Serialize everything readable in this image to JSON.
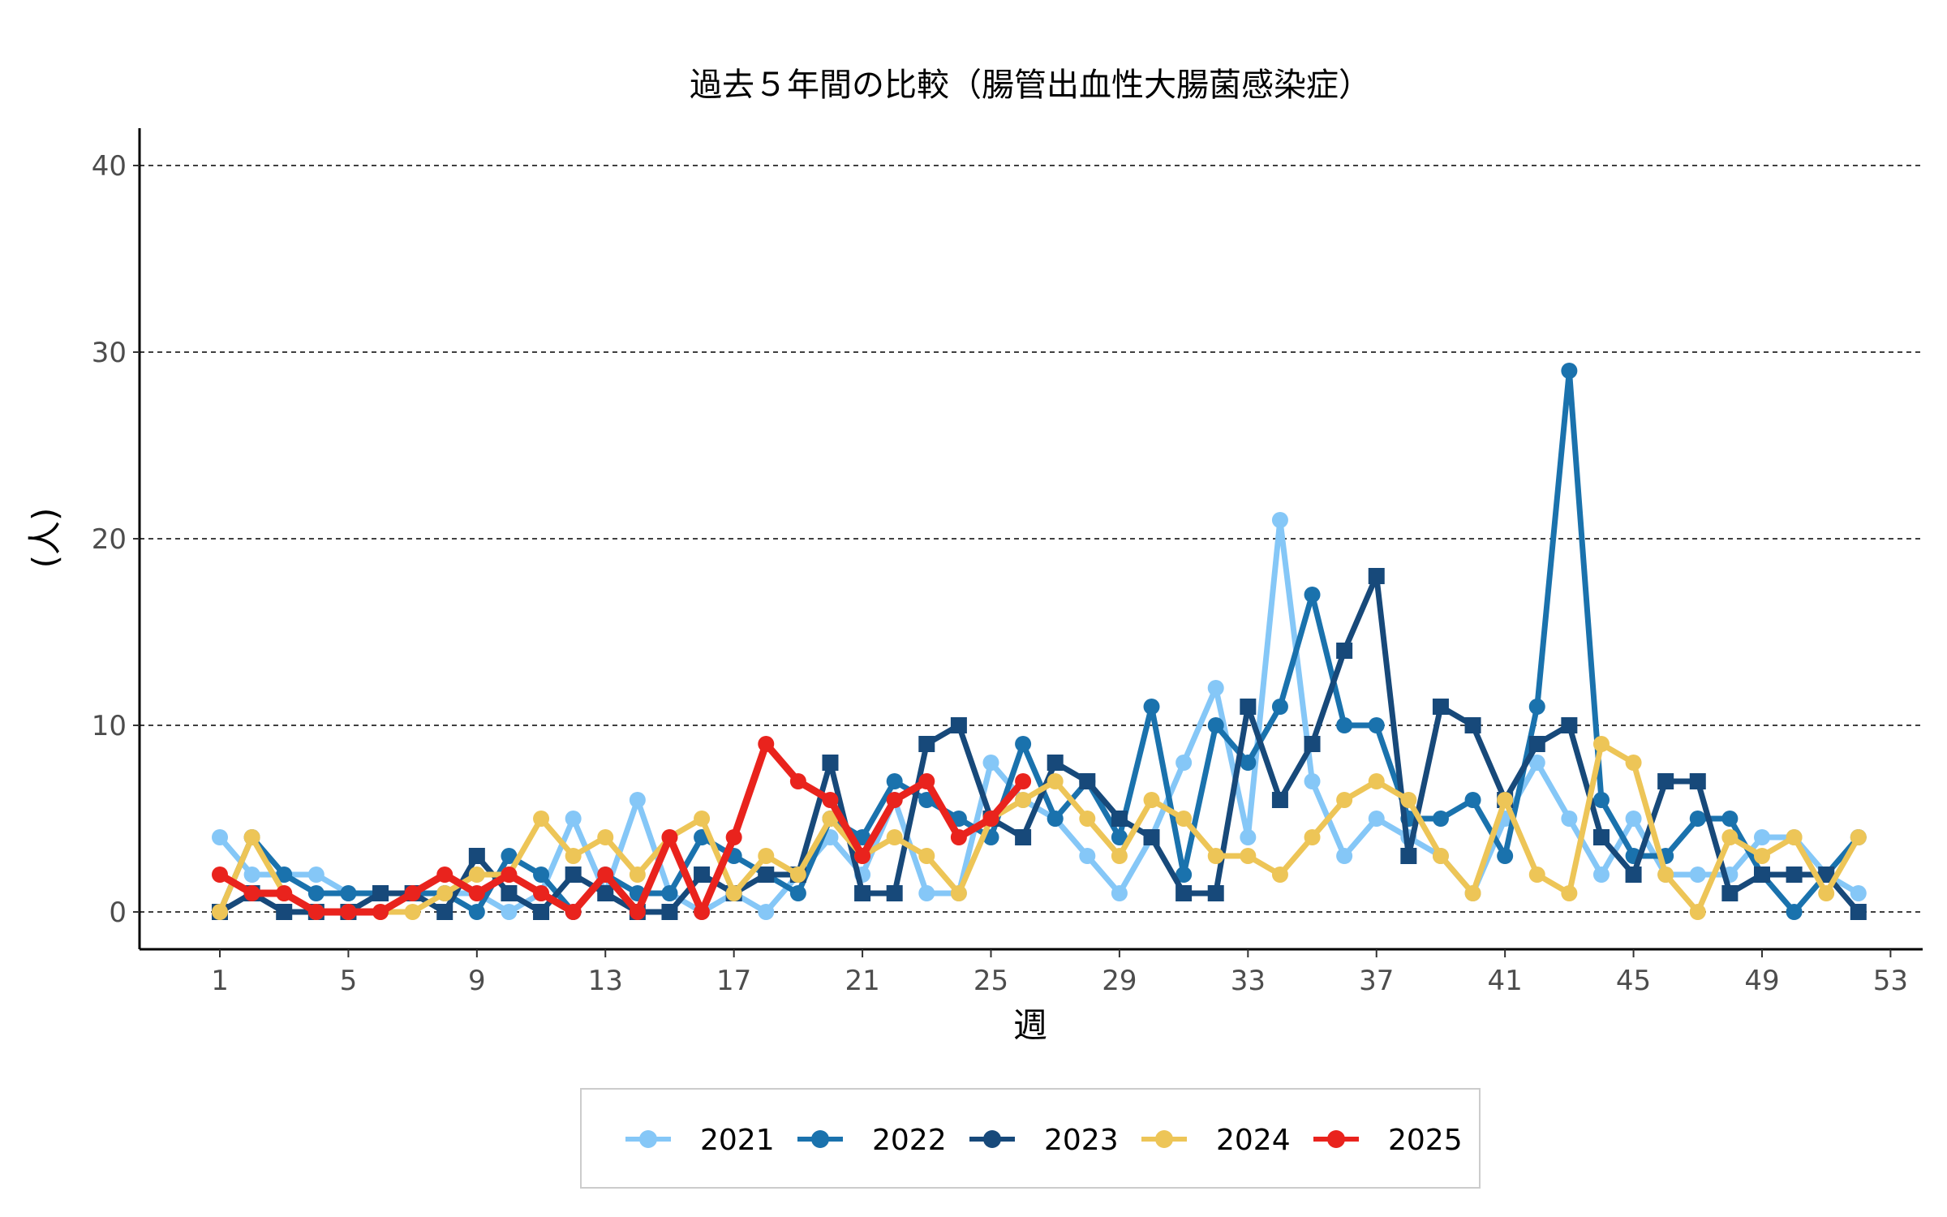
{
  "chart_data": {
    "type": "line",
    "title": "過去５年間の比較（腸管出血性大腸菌感染症）",
    "xlabel": "週",
    "ylabel": "(人)",
    "xlim": [
      -1.5,
      54
    ],
    "ylim": [
      -2,
      42
    ],
    "x_ticks": [
      1,
      5,
      9,
      13,
      17,
      21,
      25,
      29,
      33,
      37,
      41,
      45,
      49,
      53
    ],
    "y_ticks": [
      0,
      10,
      20,
      30,
      40
    ],
    "grid": "horizontal dashed",
    "legend_position": "bottom",
    "series": [
      {
        "name": "2021",
        "color": "#85C7F7",
        "marker": "circle",
        "x": [
          1,
          2,
          3,
          4,
          5,
          6,
          7,
          8,
          9,
          10,
          11,
          12,
          13,
          14,
          15,
          16,
          17,
          18,
          19,
          20,
          21,
          22,
          23,
          24,
          25,
          26,
          27,
          28,
          29,
          30,
          31,
          32,
          33,
          34,
          35,
          36,
          37,
          38,
          39,
          40,
          41,
          42,
          43,
          44,
          45,
          46,
          47,
          48,
          49,
          50,
          51,
          52
        ],
        "values": [
          4,
          2,
          2,
          2,
          1,
          1,
          1,
          1,
          1,
          0,
          1,
          5,
          1,
          6,
          1,
          0,
          1,
          0,
          2,
          4,
          2,
          6,
          1,
          1,
          8,
          6,
          5,
          3,
          1,
          4,
          8,
          12,
          4,
          21,
          7,
          3,
          5,
          4,
          3,
          1,
          5,
          8,
          5,
          2,
          5,
          2,
          2,
          2,
          4,
          4,
          2,
          1
        ]
      },
      {
        "name": "2022",
        "color": "#1A72AD",
        "marker": "circle",
        "x": [
          1,
          2,
          3,
          4,
          5,
          6,
          7,
          8,
          9,
          10,
          11,
          12,
          13,
          14,
          15,
          16,
          17,
          18,
          19,
          20,
          21,
          22,
          23,
          24,
          25,
          26,
          27,
          28,
          29,
          30,
          31,
          32,
          33,
          34,
          35,
          36,
          37,
          38,
          39,
          40,
          41,
          42,
          43,
          44,
          45,
          46,
          47,
          48,
          49,
          50,
          51,
          52
        ],
        "values": [
          0,
          4,
          2,
          1,
          1,
          1,
          1,
          1,
          0,
          3,
          2,
          0,
          2,
          1,
          1,
          4,
          3,
          2,
          1,
          5,
          4,
          7,
          6,
          5,
          4,
          9,
          5,
          7,
          4,
          11,
          2,
          10,
          8,
          11,
          17,
          10,
          10,
          5,
          5,
          6,
          3,
          11,
          29,
          6,
          3,
          3,
          5,
          5,
          2,
          0,
          2,
          4
        ]
      },
      {
        "name": "2023",
        "color": "#17497A",
        "marker": "square",
        "x": [
          1,
          2,
          3,
          4,
          5,
          6,
          7,
          8,
          9,
          10,
          11,
          12,
          13,
          14,
          15,
          16,
          17,
          18,
          19,
          20,
          21,
          22,
          23,
          24,
          25,
          26,
          27,
          28,
          29,
          30,
          31,
          32,
          33,
          34,
          35,
          36,
          37,
          38,
          39,
          40,
          41,
          42,
          43,
          44,
          45,
          46,
          47,
          48,
          49,
          50,
          51,
          52
        ],
        "values": [
          0,
          1,
          0,
          0,
          0,
          1,
          1,
          0,
          3,
          1,
          0,
          2,
          1,
          0,
          0,
          2,
          1,
          2,
          2,
          8,
          1,
          1,
          9,
          10,
          5,
          4,
          8,
          7,
          5,
          4,
          1,
          1,
          11,
          6,
          9,
          14,
          18,
          3,
          11,
          10,
          6,
          9,
          10,
          4,
          2,
          7,
          7,
          1,
          2,
          2,
          2,
          0
        ]
      },
      {
        "name": "2024",
        "color": "#EDC557",
        "marker": "circle",
        "x": [
          1,
          2,
          3,
          4,
          5,
          6,
          7,
          8,
          9,
          10,
          11,
          12,
          13,
          14,
          15,
          16,
          17,
          18,
          19,
          20,
          21,
          22,
          23,
          24,
          25,
          26,
          27,
          28,
          29,
          30,
          31,
          32,
          33,
          34,
          35,
          36,
          37,
          38,
          39,
          40,
          41,
          42,
          43,
          44,
          45,
          46,
          47,
          48,
          49,
          50,
          51,
          52
        ],
        "values": [
          0,
          4,
          1,
          0,
          0,
          0,
          0,
          1,
          2,
          2,
          5,
          3,
          4,
          2,
          4,
          5,
          1,
          3,
          2,
          5,
          3,
          4,
          3,
          1,
          5,
          6,
          7,
          5,
          3,
          6,
          5,
          3,
          3,
          2,
          4,
          6,
          7,
          6,
          3,
          1,
          6,
          2,
          1,
          9,
          8,
          2,
          0,
          4,
          3,
          4,
          1,
          4
        ]
      },
      {
        "name": "2025",
        "color": "#E9231D",
        "marker": "circle",
        "x": [
          1,
          2,
          3,
          4,
          5,
          6,
          7,
          8,
          9,
          10,
          11,
          12,
          13,
          14,
          15,
          16,
          17,
          18,
          19,
          20,
          21,
          22,
          23,
          24,
          25,
          26
        ],
        "values": [
          2,
          1,
          1,
          0,
          0,
          0,
          1,
          2,
          1,
          2,
          1,
          0,
          2,
          0,
          4,
          0,
          4,
          9,
          7,
          6,
          3,
          6,
          7,
          4,
          5,
          7
        ]
      }
    ]
  }
}
